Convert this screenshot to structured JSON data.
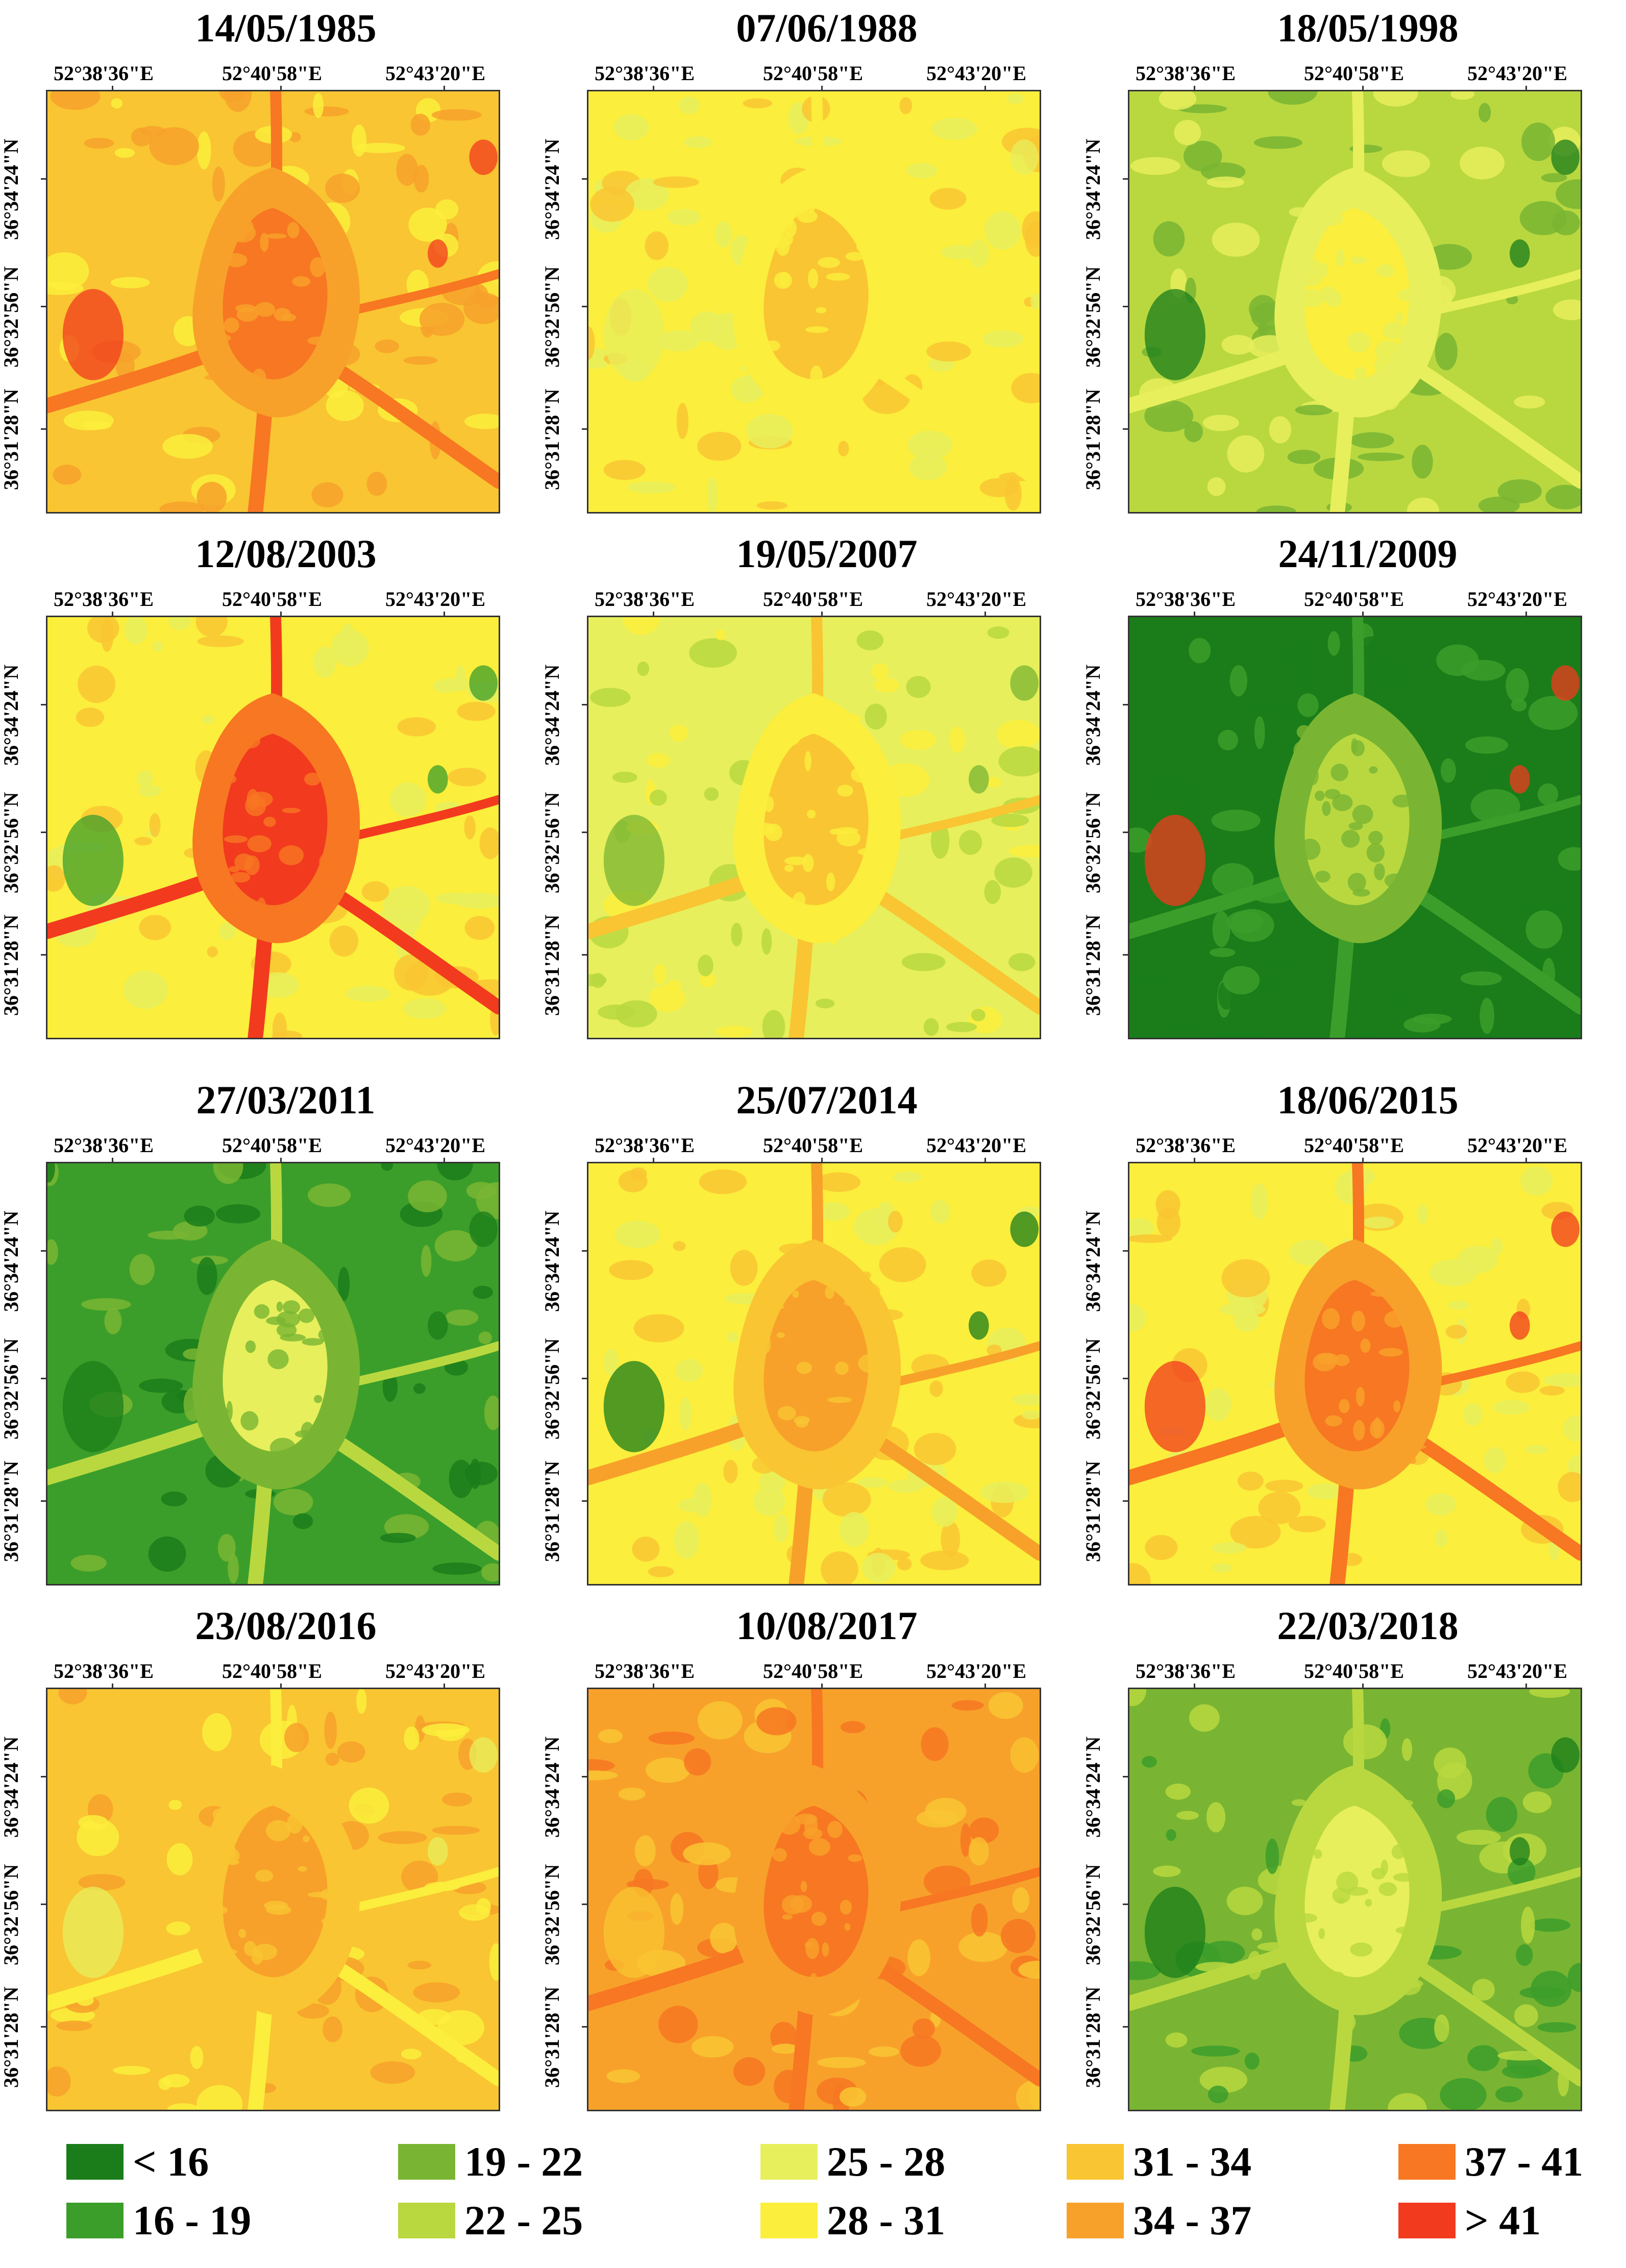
{
  "lon_labels": [
    "52°38'36\"E",
    "52°40'58\"E",
    "52°43'20\"E"
  ],
  "lat_labels": [
    "36°34'24\"N",
    "36°32'56\"N",
    "36°31'28\"N"
  ],
  "legend": [
    {
      "label": "< 16",
      "color": "#1a7d1a"
    },
    {
      "label": "16 - 19",
      "color": "#3c9e2a"
    },
    {
      "label": "19 - 22",
      "color": "#79b532"
    },
    {
      "label": "22 - 25",
      "color": "#b9d840"
    },
    {
      "label": "25 - 28",
      "color": "#e7ef5c"
    },
    {
      "label": "28 - 31",
      "color": "#fbee3c"
    },
    {
      "label": "31 - 34",
      "color": "#f9c532"
    },
    {
      "label": "34 - 37",
      "color": "#f7a12a"
    },
    {
      "label": "37 - 41",
      "color": "#f77722"
    },
    {
      "label": "> 41",
      "color": "#f23a1e"
    }
  ],
  "maps": [
    {
      "date": "14/05/1985",
      "base": 6,
      "core": 8,
      "corridor": 8,
      "ring": 7,
      "patch": 9
    },
    {
      "date": "07/06/1988",
      "base": 5,
      "core": 6,
      "corridor": 5,
      "ring": 5,
      "patch": 4
    },
    {
      "date": "18/05/1998",
      "base": 3,
      "core": 5,
      "corridor": 4,
      "ring": 4,
      "patch": 0
    },
    {
      "date": "12/08/2003",
      "base": 5,
      "core": 9,
      "corridor": 9,
      "ring": 8,
      "patch": 1
    },
    {
      "date": "19/05/2007",
      "base": 4,
      "core": 6,
      "corridor": 6,
      "ring": 5,
      "patch": 2
    },
    {
      "date": "24/11/2009",
      "base": 0,
      "core": 3,
      "corridor": 1,
      "ring": 2,
      "patch": 9
    },
    {
      "date": "27/03/2011",
      "base": 1,
      "core": 4,
      "corridor": 3,
      "ring": 2,
      "patch": 0
    },
    {
      "date": "25/07/2014",
      "base": 5,
      "core": 7,
      "corridor": 7,
      "ring": 6,
      "patch": 0
    },
    {
      "date": "18/06/2015",
      "base": 5,
      "core": 8,
      "corridor": 8,
      "ring": 7,
      "patch": 9
    },
    {
      "date": "23/08/2016",
      "base": 6,
      "core": 7,
      "corridor": 5,
      "ring": 6,
      "patch": 4
    },
    {
      "date": "10/08/2017",
      "base": 7,
      "core": 8,
      "corridor": 8,
      "ring": 7,
      "patch": 6
    },
    {
      "date": "22/03/2018",
      "base": 2,
      "core": 4,
      "corridor": 3,
      "ring": 3,
      "patch": 0
    }
  ]
}
